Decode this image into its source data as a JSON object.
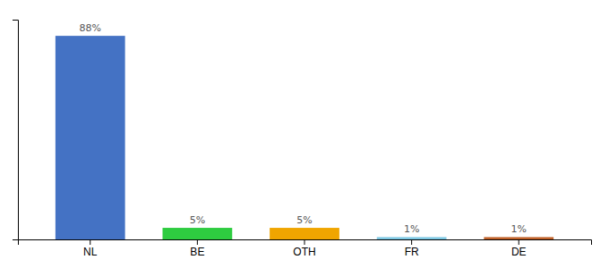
{
  "chart_data": {
    "type": "bar",
    "categories": [
      "NL",
      "BE",
      "OTH",
      "FR",
      "DE"
    ],
    "values": [
      88,
      5,
      5,
      1,
      1
    ],
    "value_labels": [
      "88%",
      "5%",
      "5%",
      "1%",
      "1%"
    ],
    "data_labels": true,
    "colors": [
      "#4472c4",
      "#2ecc40",
      "#f0a500",
      "#7ec8e3",
      "#c0622a"
    ],
    "ylim": [
      0,
      95
    ],
    "grid": false,
    "tick_labels": "x"
  }
}
